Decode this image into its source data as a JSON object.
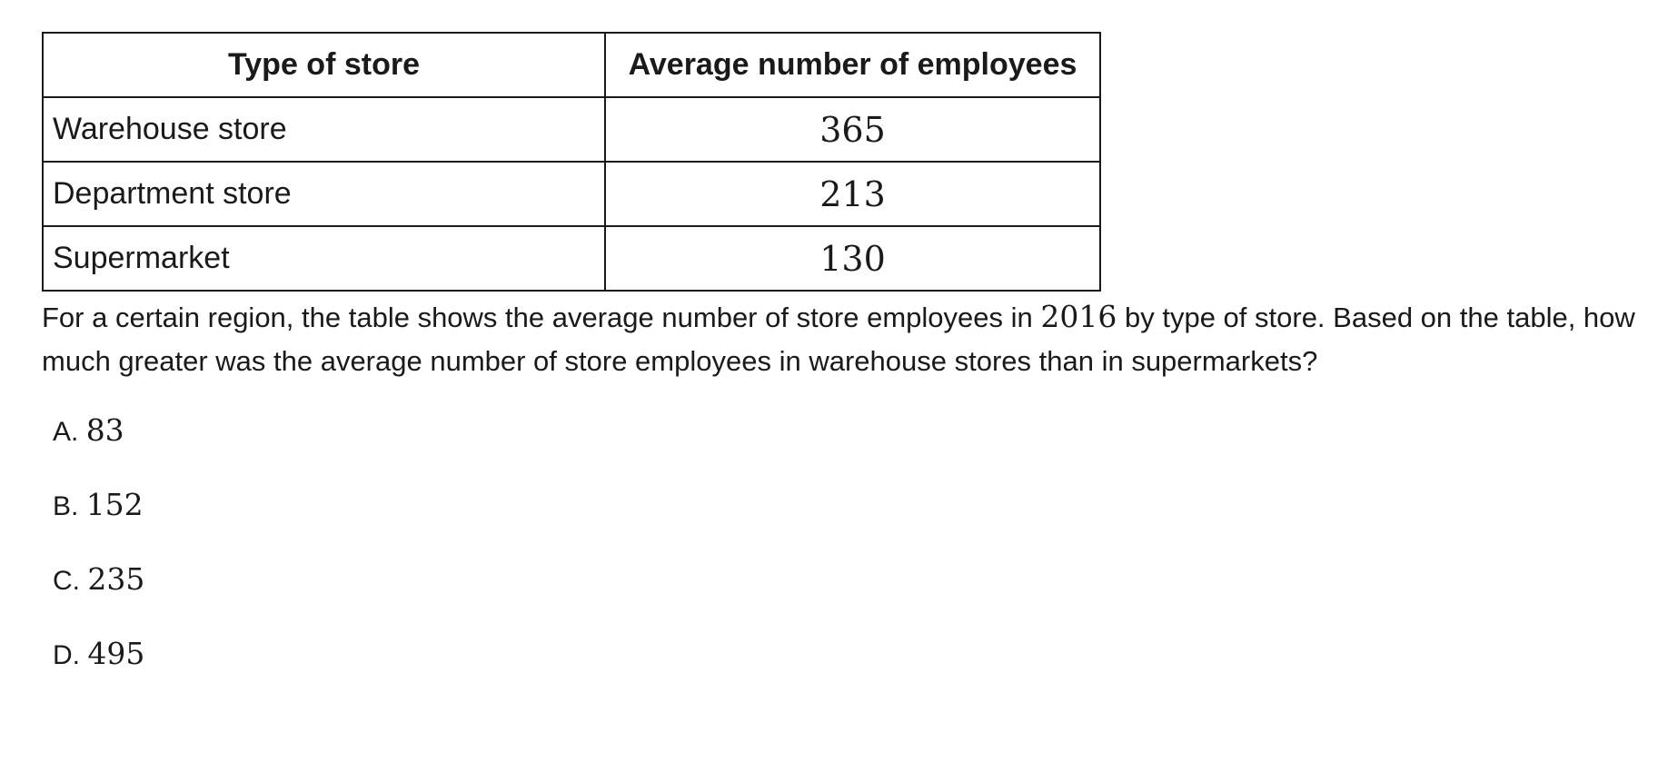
{
  "table": {
    "headers": [
      "Type of store",
      "Average number of employees"
    ],
    "rows": [
      {
        "type": "Warehouse store",
        "value": "365"
      },
      {
        "type": "Department store",
        "value": "213"
      },
      {
        "type": "Supermarket",
        "value": "130"
      }
    ]
  },
  "question": {
    "stem_part1": "For a certain region, the table shows the average number of store employees in ",
    "year": "2016",
    "stem_part2": " by type of store. Based on the table, how much greater was the average number of store employees in warehouse stores than in supermarkets?"
  },
  "choices": [
    {
      "letter": "A. ",
      "value": "83"
    },
    {
      "letter": "B. ",
      "value": "152"
    },
    {
      "letter": "C. ",
      "value": "235"
    },
    {
      "letter": "D. ",
      "value": "495"
    }
  ]
}
